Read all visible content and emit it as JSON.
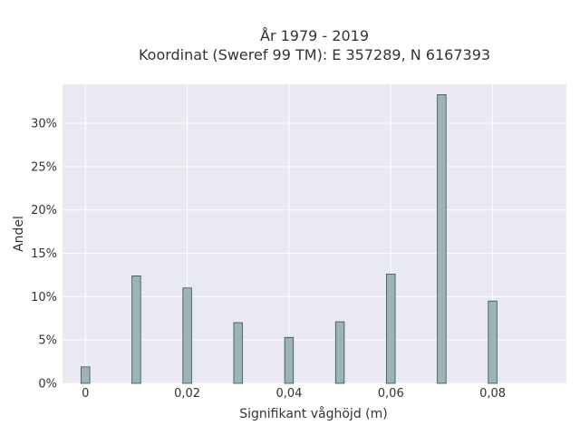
{
  "chart_data": {
    "type": "bar",
    "title_line1": "År 1979 - 2019",
    "title_line2": "Koordinat (Sweref 99 TM): E 357289, N 6167393",
    "xlabel": "Signifikant våghöjd (m)",
    "ylabel": "Andel",
    "xlim": [
      -0.0045,
      0.0945
    ],
    "ylim": [
      0,
      34.5
    ],
    "x_ticks": [
      0,
      0.02,
      0.04,
      0.06,
      0.08
    ],
    "x_tick_labels": [
      "0",
      "0,02",
      "0,04",
      "0,06",
      "0,08"
    ],
    "y_ticks": [
      0,
      5,
      10,
      15,
      20,
      25,
      30
    ],
    "y_tick_labels": [
      "0%",
      "5%",
      "10%",
      "15%",
      "20%",
      "25%",
      "30%"
    ],
    "bar_width": 0.0017,
    "grid": true,
    "colors": {
      "bar_fill": "#9cb4b6",
      "bar_stroke": "#2f4f4f",
      "plot_bg": "#e8e9f1",
      "grid": "#ffffff"
    },
    "x": [
      0,
      0.01,
      0.02,
      0.03,
      0.04,
      0.05,
      0.06,
      0.07,
      0.08
    ],
    "values": [
      1.9,
      12.4,
      11.0,
      7.0,
      5.3,
      7.1,
      12.6,
      33.3,
      9.5
    ]
  }
}
